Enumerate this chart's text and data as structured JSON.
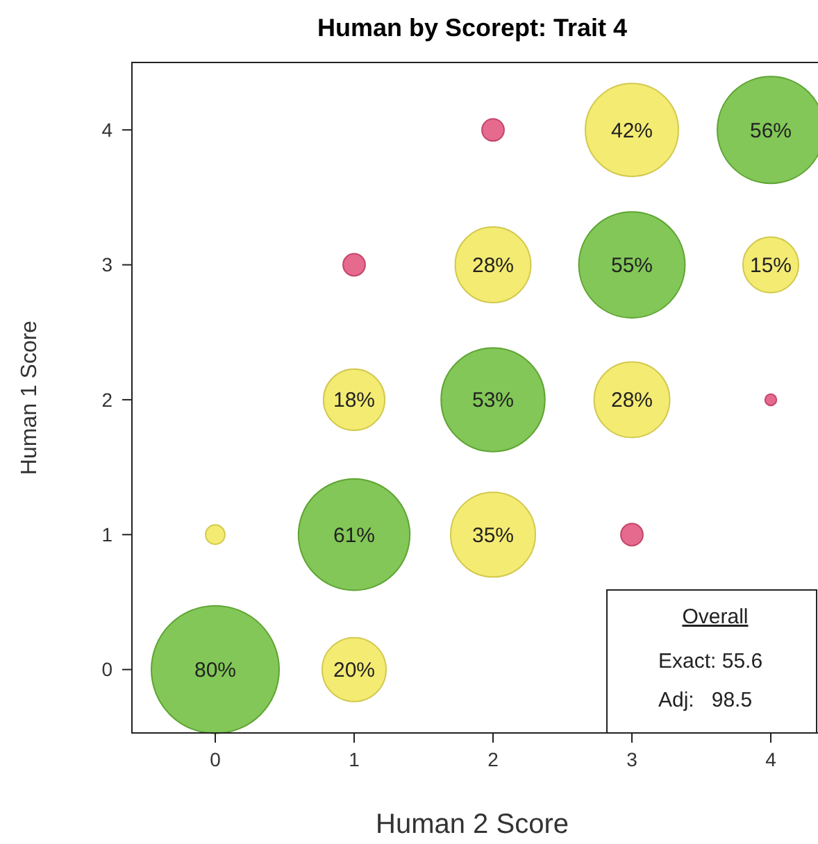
{
  "chart_data": {
    "type": "bubble",
    "title": "Human by Scorept: Trait 4",
    "xlabel": "Human 2 Score",
    "ylabel": "Human 1 Score",
    "xlim": [
      -0.6,
      4.45
    ],
    "ylim": [
      -0.47,
      4.5
    ],
    "xticks": [
      0,
      1,
      2,
      3,
      4
    ],
    "yticks": [
      0,
      1,
      2,
      3,
      4
    ],
    "series": [
      {
        "x": [
          0,
          1,
          0,
          1,
          2,
          3,
          1,
          2,
          3,
          4,
          1,
          2,
          3,
          4,
          2,
          3,
          4
        ],
        "values": [
          0,
          0,
          1,
          1,
          1,
          1,
          2,
          2,
          2,
          2,
          3,
          3,
          3,
          3,
          4,
          4,
          4
        ],
        "sizes": [
          1,
          0.25,
          0.023,
          0.76,
          0.44,
          0.03,
          0.23,
          0.66,
          0.35,
          0.008,
          0.03,
          0.35,
          0.69,
          0.19,
          0.03,
          0.53,
          0.7
        ],
        "colors": [
          "#6cbd3a",
          "#f2e85a",
          "#f2e85a",
          "#6cbd3a",
          "#f2e85a",
          "#e2507a",
          "#f2e85a",
          "#6cbd3a",
          "#f2e85a",
          "#e2507a",
          "#e2507a",
          "#f2e85a",
          "#6cbd3a",
          "#f2e85a",
          "#e2507a",
          "#f2e85a",
          "#6cbd3a"
        ]
      }
    ],
    "annotations": [
      {
        "text": "80%",
        "x": 0,
        "y": 0
      },
      {
        "text": "20%",
        "x": 1,
        "y": 0
      },
      {
        "text": "61%",
        "x": 1,
        "y": 1
      },
      {
        "text": "35%",
        "x": 2,
        "y": 1
      },
      {
        "text": "18%",
        "x": 1,
        "y": 2
      },
      {
        "text": "53%",
        "x": 2,
        "y": 2
      },
      {
        "text": "28%",
        "x": 3,
        "y": 2
      },
      {
        "text": "28%",
        "x": 2,
        "y": 3
      },
      {
        "text": "55%",
        "x": 3,
        "y": 3
      },
      {
        "text": "15%",
        "x": 4,
        "y": 3
      },
      {
        "text": "42%",
        "x": 3,
        "y": 4
      },
      {
        "text": "56%",
        "x": 4,
        "y": 4
      },
      "Overall",
      "Exact: 55.6",
      "Adj:   98.5"
    ]
  }
}
